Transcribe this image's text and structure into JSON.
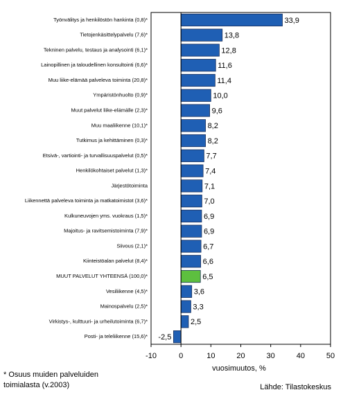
{
  "chart_data": {
    "type": "barh",
    "categories": [
      "Työnvälitys ja henkilöstön hankinta (0,8)*",
      "Tietojenkäsittelypalvelu (7,6)*",
      "Tekninen palvelu, testaus ja analysointi (6,1)*",
      "Lainopillinen ja taloudellinen konsultointi (6,6)*",
      "Muu liike-elämää palveleva toiminta (20,8)*",
      "Ympäristönhuolto (0,9)*",
      "Muut palvelut liike-elämälle (2,3)*",
      "Muu maaliikenne (10,1)*",
      "Tutkimus ja kehittäminen (0,3)*",
      "Etsivä-, vartiointi- ja turvallisuuspalvelut (0,5)*",
      "Henkilökohtaiset palvelut (1,3)*",
      "Järjestötoiminta",
      "Liikennettä palveleva toiminta ja matkatoimistot (3,6)*",
      "Kulkuneuvojen yms. vuokraus (1,5)*",
      "Majoitus- ja ravitsemistoiminta (7,9)*",
      "Siivous (2,1)*",
      "Kiinteistöalan palvelut (8,4)*",
      "MUUT PALVELUT YHTEENSÄ (100,0)*",
      "Vesiliikenne (4,5)*",
      "Mainospalvelu (2,5)*",
      "Virkistys-, kulttuuri- ja urheilutoiminta (6,7)*",
      "Posti- ja teleliikenne (15,6)*"
    ],
    "values": [
      33.9,
      13.8,
      12.8,
      11.6,
      11.4,
      10.0,
      9.6,
      8.2,
      8.2,
      7.7,
      7.4,
      7.1,
      7.0,
      6.9,
      6.9,
      6.7,
      6.6,
      6.5,
      3.6,
      3.3,
      2.5,
      -2.5
    ],
    "value_labels": [
      "33,9",
      "13,8",
      "12,8",
      "11,6",
      "11,4",
      "10,0",
      "9,6",
      "8,2",
      "8,2",
      "7,7",
      "7,4",
      "7,1",
      "7,0",
      "6,9",
      "6,9",
      "6,7",
      "6,6",
      "6,5",
      "3,6",
      "3,3",
      "2,5",
      "-2,5"
    ],
    "colors": [
      "#1f5fb4",
      "#1f5fb4",
      "#1f5fb4",
      "#1f5fb4",
      "#1f5fb4",
      "#1f5fb4",
      "#1f5fb4",
      "#1f5fb4",
      "#1f5fb4",
      "#1f5fb4",
      "#1f5fb4",
      "#1f5fb4",
      "#1f5fb4",
      "#1f5fb4",
      "#1f5fb4",
      "#1f5fb4",
      "#1f5fb4",
      "#5dbf3f",
      "#1f5fb4",
      "#1f5fb4",
      "#1f5fb4",
      "#1f5fb4"
    ],
    "xlim": [
      -10,
      50
    ],
    "xticks": [
      -10,
      0,
      10,
      20,
      30,
      40,
      50
    ],
    "grid": false,
    "x_label": "vuosimuutos, %",
    "footnote": [
      "* Osuus muiden palveluiden",
      "toimialasta (v.2003)"
    ],
    "source": "Lähde: Tilastokeskus"
  }
}
